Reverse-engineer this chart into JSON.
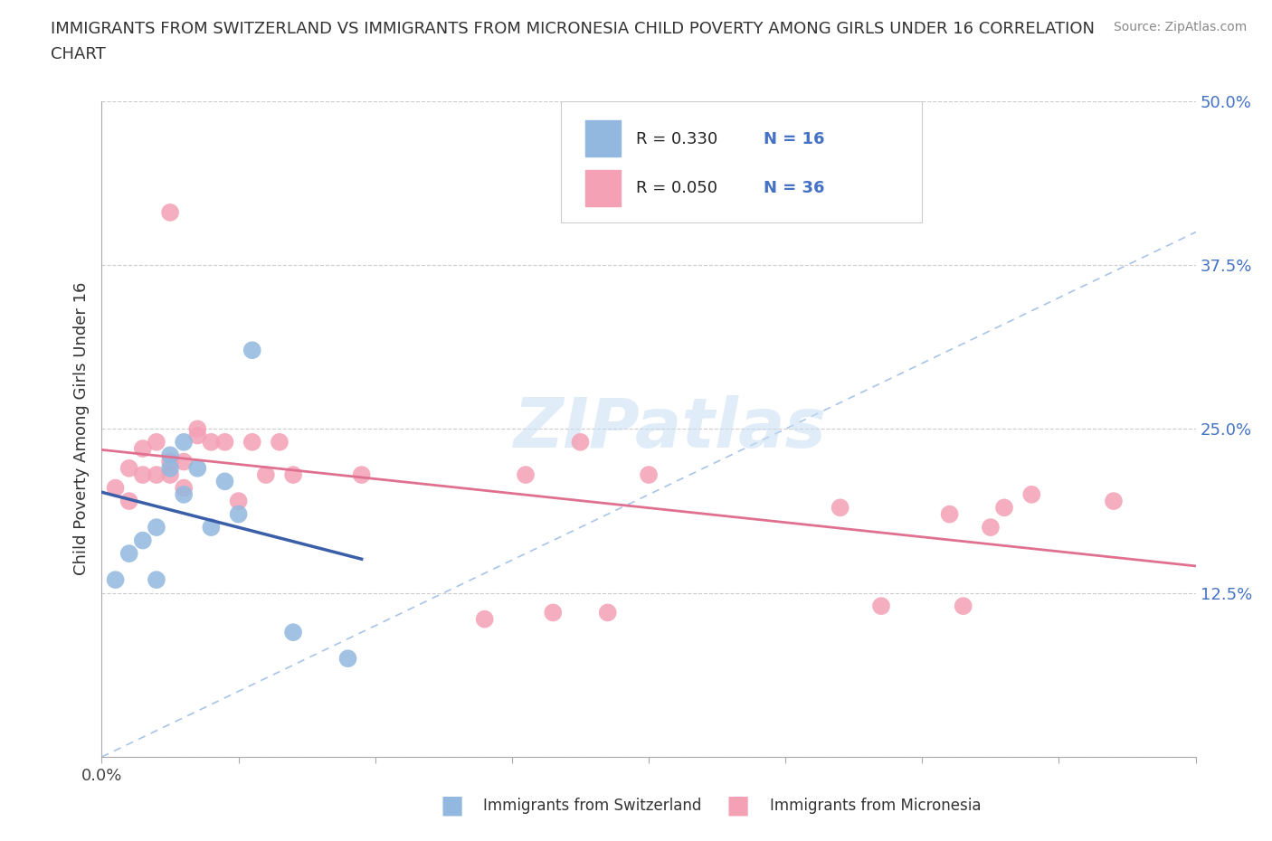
{
  "title_line1": "IMMIGRANTS FROM SWITZERLAND VS IMMIGRANTS FROM MICRONESIA CHILD POVERTY AMONG GIRLS UNDER 16 CORRELATION",
  "title_line2": "CHART",
  "source": "Source: ZipAtlas.com",
  "ylabel": "Child Poverty Among Girls Under 16",
  "xlim": [
    0.0,
    0.4
  ],
  "ylim": [
    0.0,
    0.5
  ],
  "xticks": [
    0.0,
    0.05,
    0.1,
    0.15,
    0.2,
    0.25,
    0.3,
    0.35,
    0.4
  ],
  "yticks": [
    0.0,
    0.125,
    0.25,
    0.375,
    0.5
  ],
  "xticklabels_show": {
    "0.0": "0.0%"
  },
  "yticklabels": [
    "",
    "12.5%",
    "25.0%",
    "37.5%",
    "50.0%"
  ],
  "blue_color": "#92b8e0",
  "pink_color": "#f4a0b5",
  "blue_line_color": "#3a5fa8",
  "pink_line_color": "#e07090",
  "diag_color": "#a8c4e8",
  "legend_label_blue": "Immigrants from Switzerland",
  "legend_label_pink": "Immigrants from Micronesia",
  "watermark": "ZIPatlas",
  "blue_x": [
    0.005,
    0.01,
    0.015,
    0.02,
    0.02,
    0.025,
    0.025,
    0.03,
    0.03,
    0.035,
    0.04,
    0.045,
    0.05,
    0.055,
    0.07,
    0.09
  ],
  "blue_y": [
    0.135,
    0.155,
    0.165,
    0.135,
    0.175,
    0.22,
    0.23,
    0.2,
    0.24,
    0.22,
    0.175,
    0.21,
    0.185,
    0.31,
    0.095,
    0.075
  ],
  "pink_x": [
    0.005,
    0.01,
    0.01,
    0.015,
    0.015,
    0.02,
    0.02,
    0.025,
    0.025,
    0.025,
    0.03,
    0.03,
    0.035,
    0.035,
    0.04,
    0.045,
    0.05,
    0.055,
    0.06,
    0.065,
    0.07,
    0.095,
    0.14,
    0.155,
    0.165,
    0.175,
    0.185,
    0.2,
    0.27,
    0.285,
    0.31,
    0.315,
    0.325,
    0.33,
    0.34,
    0.37
  ],
  "pink_y": [
    0.205,
    0.195,
    0.22,
    0.215,
    0.235,
    0.215,
    0.24,
    0.215,
    0.225,
    0.415,
    0.205,
    0.225,
    0.245,
    0.25,
    0.24,
    0.24,
    0.195,
    0.24,
    0.215,
    0.24,
    0.215,
    0.215,
    0.105,
    0.215,
    0.11,
    0.24,
    0.11,
    0.215,
    0.19,
    0.115,
    0.185,
    0.115,
    0.175,
    0.19,
    0.2,
    0.195
  ],
  "grid_color": "#cccccc",
  "grid_linestyle": "--",
  "bg_color": "#ffffff"
}
